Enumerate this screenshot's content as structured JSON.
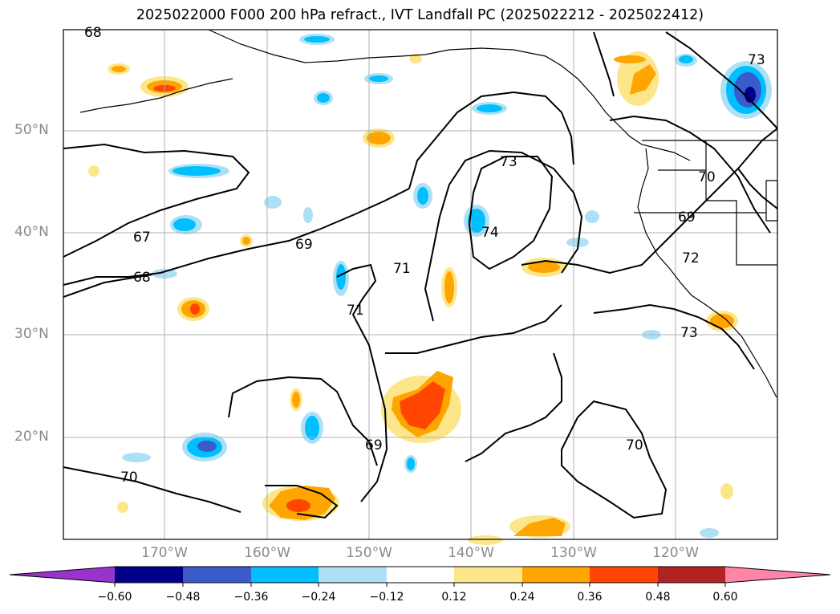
{
  "title": "2025022000 F000 200 hPa refract., IVT Landfall PC (2025022212 - 2025022412)",
  "map": {
    "lat_labels": [
      {
        "text": "50°N",
        "value": 50
      },
      {
        "text": "40°N",
        "value": 40
      },
      {
        "text": "30°N",
        "value": 30
      },
      {
        "text": "20°N",
        "value": 20
      }
    ],
    "lon_labels": [
      {
        "text": "170°W",
        "value": -170
      },
      {
        "text": "160°W",
        "value": -160
      },
      {
        "text": "150°W",
        "value": -150
      },
      {
        "text": "140°W",
        "value": -140
      },
      {
        "text": "130°W",
        "value": -130
      },
      {
        "text": "120°W",
        "value": -120
      }
    ],
    "contour_labels": [
      "68",
      "73",
      "67",
      "69",
      "68",
      "71",
      "71",
      "73",
      "74",
      "70",
      "69",
      "72",
      "73",
      "69",
      "70",
      "70"
    ],
    "grid": true
  },
  "colorbar": {
    "ticks": [
      "−0.60",
      "−0.48",
      "−0.36",
      "−0.24",
      "−0.12",
      "0.12",
      "0.24",
      "0.36",
      "0.48",
      "0.60"
    ],
    "colors": [
      "#9933cc",
      "#00008b",
      "#3a5bcc",
      "#00bfff",
      "#ade0f5",
      "#ffffff",
      "#fde68a",
      "#ffa500",
      "#ff4500",
      "#b22222",
      "#ff85a8"
    ]
  }
}
